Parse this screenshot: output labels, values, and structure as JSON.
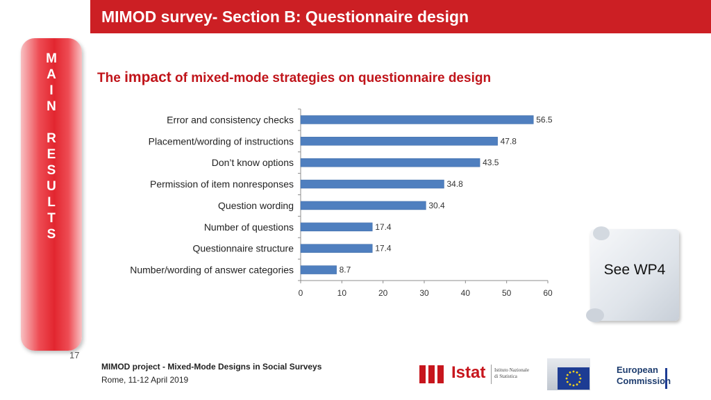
{
  "header": {
    "title": "MIMOD survey- Section B: Questionnaire design"
  },
  "side_tab": {
    "letters": [
      "M",
      "A",
      "I",
      "N",
      "",
      "R",
      "E",
      "S",
      "U",
      "L",
      "T",
      "S"
    ]
  },
  "page_number": "17",
  "subtitle": {
    "before": "The ",
    "emphasis": "impact",
    "after": " of mixed-mode strategies on questionnaire design"
  },
  "callout": {
    "text": "See WP4"
  },
  "footer": {
    "project": "MIMOD project - Mixed-Mode Designs in Social Surveys",
    "event": "Rome, 11-12 April 2019"
  },
  "logos": {
    "istat": {
      "name": "Istat",
      "tagline_1": "Istituto Nazionale",
      "tagline_2": "di Statistica"
    },
    "ec": {
      "name_1": "European",
      "name_2": "Commission"
    }
  },
  "colors": {
    "title_bar": "#cc1f24",
    "bar": "#4f7fbf",
    "subtitle": "#c0141a"
  },
  "chart_data": {
    "type": "bar",
    "orientation": "horizontal",
    "title": "",
    "xlabel": "",
    "ylabel": "",
    "categories": [
      "Error and consistency checks",
      "Placement/wording of instructions",
      "Don’t know options",
      "Permission of item nonresponses",
      "Question wording",
      "Number of questions",
      "Questionnaire structure",
      "Number/wording of answer categories"
    ],
    "values": [
      56.5,
      47.8,
      43.5,
      34.8,
      30.4,
      17.4,
      17.4,
      8.7
    ],
    "value_labels": [
      "56.5",
      "47.8",
      "43.5",
      "34.8",
      "30.4",
      "17.4",
      "17.4",
      "8.7"
    ],
    "xlim": [
      0,
      60
    ],
    "xticks": [
      0,
      10,
      20,
      30,
      40,
      50,
      60
    ],
    "xtick_labels": [
      "0",
      "10",
      "20",
      "30",
      "40",
      "50",
      "60"
    ],
    "grid": false,
    "legend": "none"
  }
}
